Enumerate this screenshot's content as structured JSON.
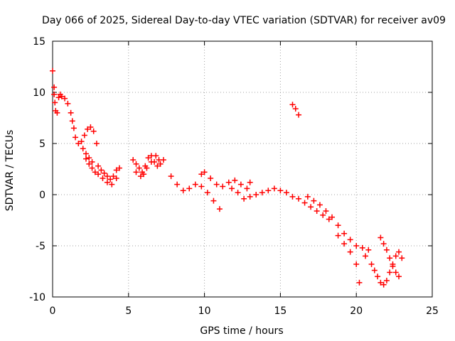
{
  "chart_data": {
    "type": "scatter",
    "title": "Day 066 of 2025, Sidereal Day-to-day VTEC variation (SDTVAR) for receiver av09",
    "xlabel": "GPS time / hours",
    "ylabel": "SDTVAR / TECUs",
    "xlim": [
      0,
      25
    ],
    "ylim": [
      -10,
      15
    ],
    "xticks": [
      0,
      5,
      10,
      15,
      20,
      25
    ],
    "yticks": [
      -10,
      -5,
      0,
      5,
      10,
      15
    ],
    "xtick_labels": [
      "0",
      "5",
      "10",
      "15",
      "20",
      "25"
    ],
    "ytick_labels": [
      "-10",
      "-5",
      "0",
      "5",
      "10",
      "15"
    ],
    "grid": true,
    "marker": "+",
    "marker_color": "#ff0000",
    "series": [
      {
        "name": "SDTVAR",
        "x": [
          0.0,
          0.1,
          0.1,
          0.15,
          0.2,
          0.3,
          0.4,
          0.5,
          0.6,
          0.8,
          1.0,
          1.2,
          1.3,
          1.4,
          1.5,
          1.7,
          1.9,
          2.1,
          2.3,
          2.5,
          2.7,
          2.9,
          2.0,
          2.2,
          2.4,
          2.6,
          3.0,
          3.2,
          3.4,
          3.6,
          3.8,
          4.0,
          4.2,
          2.2,
          2.4,
          2.6,
          2.8,
          3.0,
          3.3,
          3.6,
          3.9,
          4.2,
          4.4,
          5.3,
          5.5,
          5.7,
          5.9,
          6.1,
          6.3,
          6.5,
          6.7,
          6.9,
          7.1,
          7.3,
          5.5,
          5.8,
          6.0,
          6.2,
          6.5,
          6.8,
          7.0,
          7.8,
          8.2,
          8.6,
          9.0,
          9.4,
          9.8,
          10.2,
          10.6,
          11.0,
          9.8,
          10.0,
          10.4,
          10.8,
          11.2,
          11.6,
          12.0,
          12.4,
          12.8,
          13.0,
          11.8,
          12.2,
          12.6,
          13.0,
          13.4,
          13.8,
          14.2,
          14.6,
          15.0,
          15.4,
          15.8,
          16.2,
          16.6,
          17.0,
          17.4,
          17.8,
          18.2,
          15.8,
          16.0,
          16.2,
          16.8,
          17.2,
          17.6,
          18.0,
          18.4,
          18.8,
          19.2,
          19.6,
          20.0,
          20.4,
          20.8,
          18.8,
          19.2,
          19.6,
          20.0,
          20.2,
          20.6,
          21.0,
          21.2,
          21.4,
          21.6,
          21.8,
          22.0,
          22.2,
          22.4,
          22.6,
          22.8,
          23.0,
          21.6,
          21.8,
          22.0,
          22.2,
          22.4,
          22.6,
          22.8
        ],
        "y": [
          12.1,
          10.5,
          9.8,
          9.0,
          8.2,
          8.0,
          9.5,
          9.8,
          9.6,
          9.4,
          8.9,
          8.0,
          7.2,
          6.5,
          5.6,
          5.0,
          5.2,
          5.8,
          6.4,
          6.6,
          6.2,
          5.0,
          4.5,
          4.0,
          3.6,
          3.2,
          2.8,
          2.4,
          2.1,
          1.8,
          1.5,
          1.8,
          2.4,
          3.5,
          3.0,
          2.6,
          2.2,
          2.0,
          1.6,
          1.2,
          1.0,
          1.6,
          2.6,
          3.4,
          3.0,
          2.6,
          2.2,
          2.8,
          3.6,
          3.8,
          3.2,
          2.8,
          3.0,
          3.4,
          2.2,
          1.8,
          2.0,
          2.6,
          3.2,
          3.8,
          3.4,
          1.8,
          1.0,
          0.4,
          0.6,
          1.0,
          0.8,
          0.2,
          -0.6,
          -1.4,
          2.0,
          2.2,
          1.6,
          1.0,
          0.8,
          1.2,
          1.4,
          1.0,
          0.6,
          1.2,
          0.6,
          0.2,
          -0.4,
          -0.2,
          0.0,
          0.2,
          0.4,
          0.6,
          0.4,
          0.2,
          -0.2,
          -0.4,
          -0.8,
          -1.2,
          -1.6,
          -2.0,
          -2.4,
          8.8,
          8.4,
          7.8,
          -0.2,
          -0.6,
          -1.0,
          -1.6,
          -2.2,
          -3.0,
          -3.8,
          -4.4,
          -5.0,
          -5.2,
          -5.4,
          -4.0,
          -4.8,
          -5.6,
          -6.8,
          -8.6,
          -6.0,
          -6.8,
          -7.4,
          -8.0,
          -8.6,
          -8.8,
          -8.4,
          -7.6,
          -6.8,
          -6.0,
          -5.6,
          -6.2,
          -4.2,
          -4.8,
          -5.4,
          -6.2,
          -7.0,
          -7.6,
          -8.0
        ]
      }
    ]
  }
}
